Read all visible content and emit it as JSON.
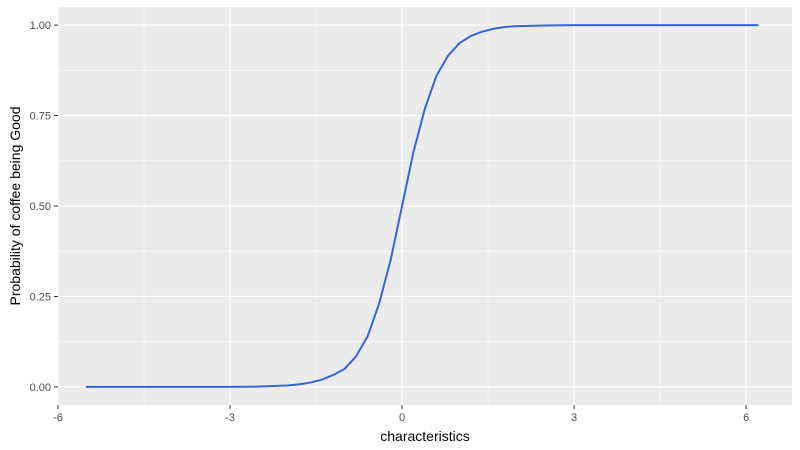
{
  "chart_data": {
    "type": "line",
    "xlabel": "characteristics",
    "ylabel": "Probability of coffee being Good",
    "xlim": [
      -6,
      6.8
    ],
    "ylim": [
      -0.05,
      1.05
    ],
    "x_ticks": [
      {
        "value": -6,
        "label": "-6"
      },
      {
        "value": -3,
        "label": "-3"
      },
      {
        "value": 0,
        "label": "0"
      },
      {
        "value": 3,
        "label": "3"
      },
      {
        "value": 6,
        "label": "6"
      }
    ],
    "y_ticks": [
      {
        "value": 0,
        "label": "0.00"
      },
      {
        "value": 0.25,
        "label": "0.25"
      },
      {
        "value": 0.5,
        "label": "0.50"
      },
      {
        "value": 0.75,
        "label": "0.75"
      },
      {
        "value": 1,
        "label": "1.00"
      }
    ],
    "grid": true,
    "series": [
      {
        "x": [
          -5.5,
          -5.0,
          -4.5,
          -4.0,
          -3.5,
          -3.0,
          -2.5,
          -2.0,
          -1.8,
          -1.6,
          -1.4,
          -1.2,
          -1.0,
          -0.8,
          -0.6,
          -0.4,
          -0.2,
          0.0,
          0.2,
          0.4,
          0.6,
          0.8,
          1.0,
          1.2,
          1.4,
          1.6,
          1.8,
          2.0,
          2.5,
          3.0,
          4.0,
          5.0,
          6.2
        ],
        "y": [
          0.0,
          0.0,
          0.0,
          0.0,
          0.0,
          0.0,
          0.001,
          0.004,
          0.007,
          0.012,
          0.02,
          0.033,
          0.05,
          0.085,
          0.14,
          0.23,
          0.35,
          0.5,
          0.65,
          0.77,
          0.86,
          0.915,
          0.95,
          0.97,
          0.982,
          0.99,
          0.995,
          0.997,
          0.999,
          1.0,
          1.0,
          1.0,
          1.0
        ]
      }
    ]
  },
  "colors": {
    "panel_background": "#ebebeb",
    "grid_major": "#ffffff",
    "line": "#3366e0"
  }
}
